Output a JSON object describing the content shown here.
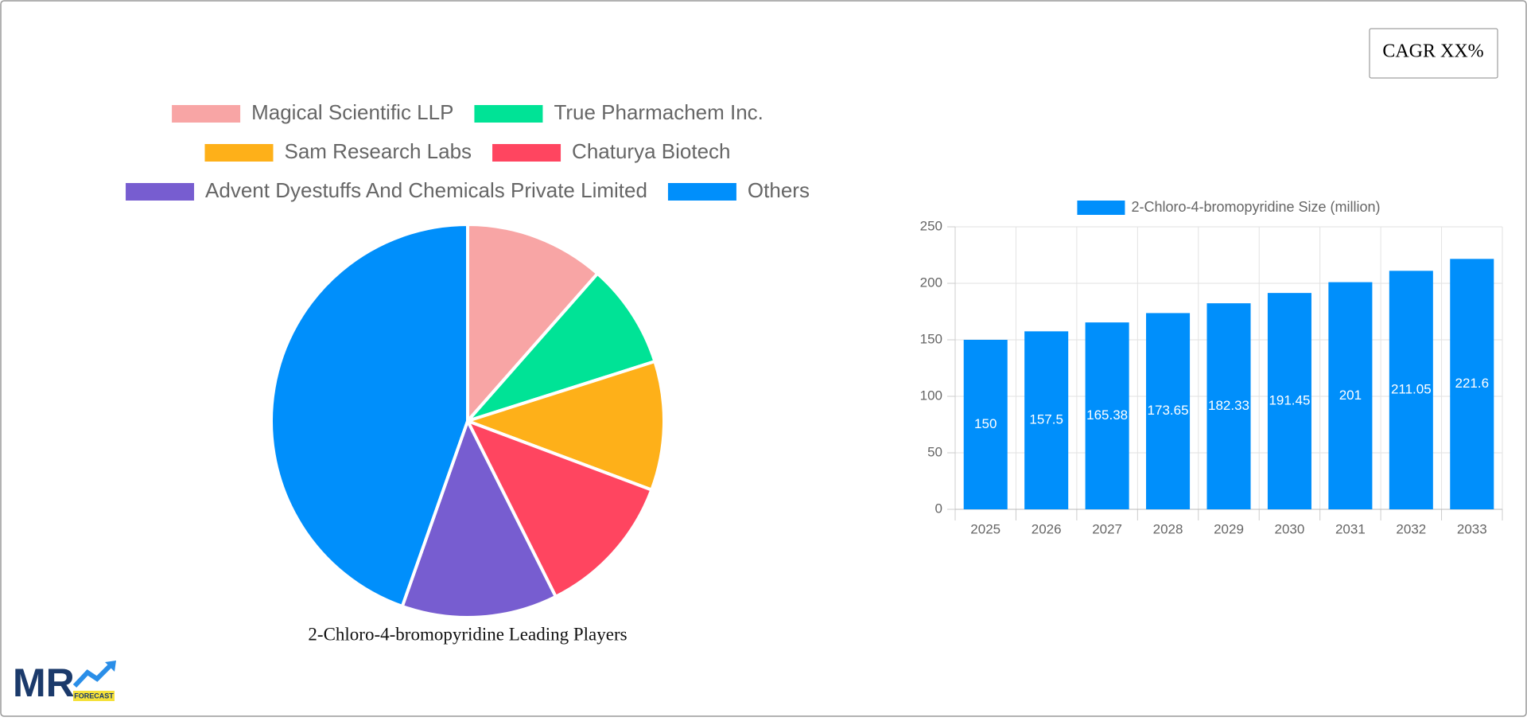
{
  "cagr": "CAGR XX%",
  "logo": {
    "text": "MR",
    "tagline": "FORECAST"
  },
  "chart_data": [
    {
      "type": "pie",
      "title": "2-Chloro-4-bromopyridine Leading Players",
      "categories": [
        "Magical Scientific LLP",
        "True Pharmachem Inc.",
        "Sam Research Labs",
        "Chaturya Biotech",
        "Advent Dyestuffs And Chemicals Private Limited",
        "Others"
      ],
      "values": [
        11.5,
        8.6,
        10.6,
        11.9,
        12.8,
        44.6
      ],
      "colors": [
        "#f8a5a5",
        "#00e396",
        "#feb019",
        "#ff4560",
        "#775dd0",
        "#008ffb"
      ]
    },
    {
      "type": "bar",
      "categories": [
        "2025",
        "2026",
        "2027",
        "2028",
        "2029",
        "2030",
        "2031",
        "2032",
        "2033"
      ],
      "series": [
        {
          "name": "2-Chloro-4-bromopyridine Size (million)",
          "color": "#008ffb",
          "values": [
            150,
            157.5,
            165.38,
            173.65,
            182.33,
            191.45,
            201,
            211.05,
            221.6
          ]
        }
      ],
      "ylim": [
        0,
        250
      ],
      "yticks": [
        0,
        50,
        100,
        150,
        200,
        250
      ],
      "grid": true
    }
  ]
}
